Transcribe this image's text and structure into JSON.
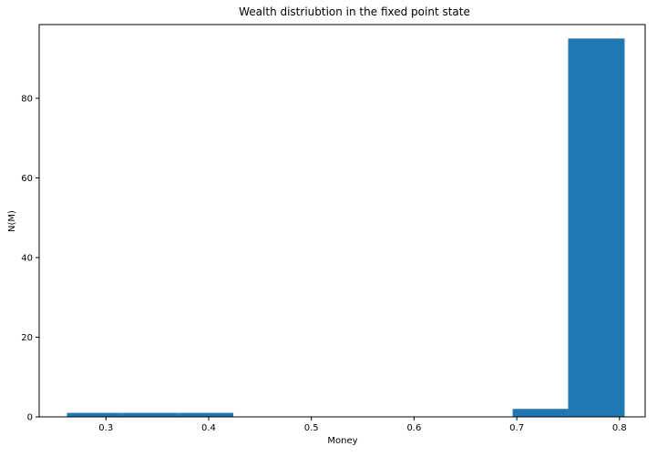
{
  "chart_data": {
    "type": "bar",
    "title": "Wealth distriubtion in the fixed point state",
    "xlabel": "Money",
    "ylabel": "N(M)",
    "xlim": [
      0.235,
      0.825
    ],
    "ylim": [
      0,
      98.5
    ],
    "x_ticks": [
      0.3,
      0.4,
      0.5,
      0.6,
      0.7,
      0.8
    ],
    "x_tick_labels": [
      "0.3",
      "0.4",
      "0.5",
      "0.6",
      "0.7",
      "0.8"
    ],
    "y_ticks": [
      0,
      20,
      40,
      60,
      80
    ],
    "y_tick_labels": [
      "0",
      "20",
      "40",
      "60",
      "80"
    ],
    "bins": [
      {
        "start": 0.262,
        "end": 0.316,
        "count": 1
      },
      {
        "start": 0.316,
        "end": 0.37,
        "count": 1
      },
      {
        "start": 0.37,
        "end": 0.424,
        "count": 1
      },
      {
        "start": 0.424,
        "end": 0.479,
        "count": 0
      },
      {
        "start": 0.479,
        "end": 0.533,
        "count": 0
      },
      {
        "start": 0.533,
        "end": 0.587,
        "count": 0
      },
      {
        "start": 0.587,
        "end": 0.641,
        "count": 0
      },
      {
        "start": 0.641,
        "end": 0.696,
        "count": 0
      },
      {
        "start": 0.696,
        "end": 0.75,
        "count": 2
      },
      {
        "start": 0.75,
        "end": 0.805,
        "count": 95
      }
    ],
    "grid": false,
    "legend": "none",
    "bar_color": "#1f77b4"
  }
}
